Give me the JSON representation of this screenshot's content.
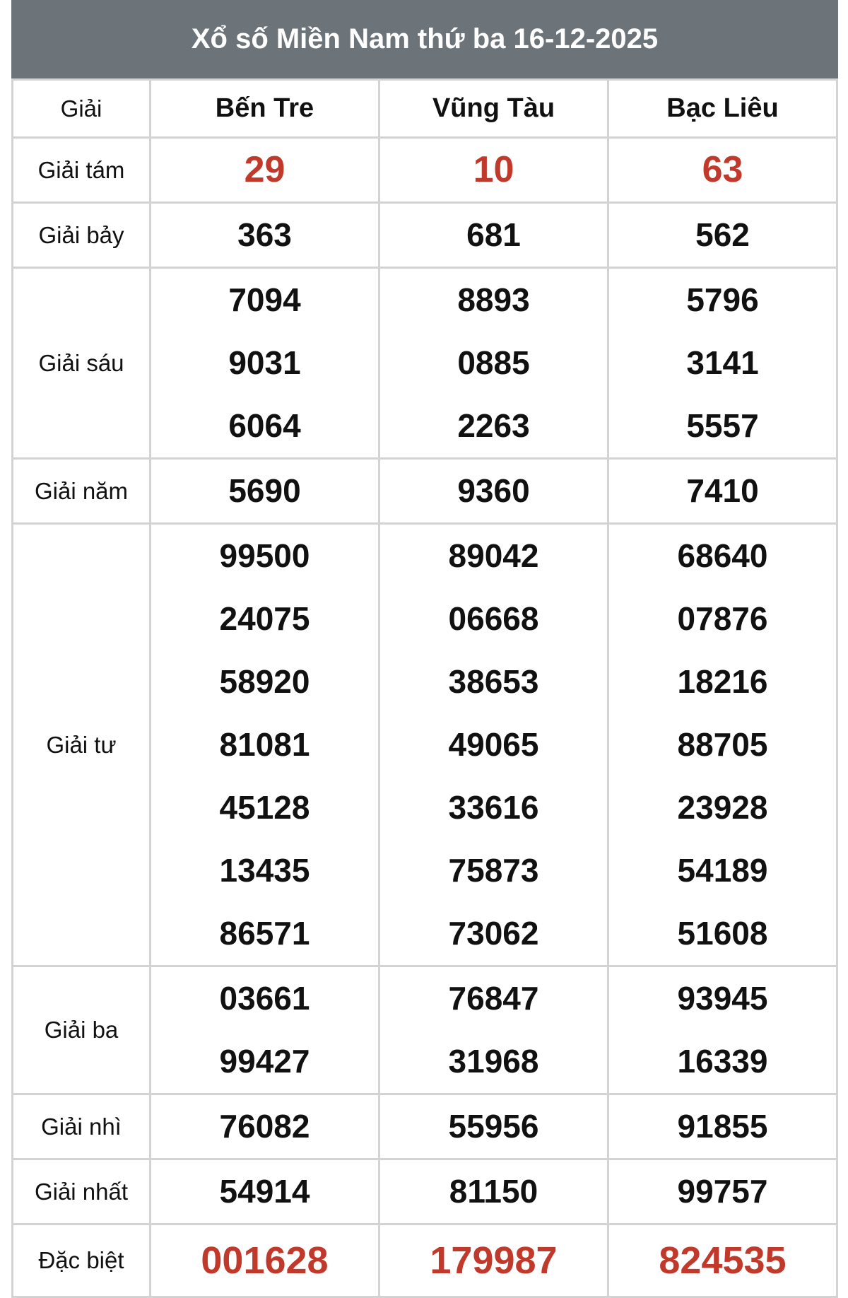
{
  "title": "Xổ số Miền Nam thứ ba 16-12-2025",
  "header": {
    "label": "Giải",
    "provinces": [
      "Bến Tre",
      "Vũng Tàu",
      "Bạc Liêu"
    ]
  },
  "colors": {
    "header_bg": "#6c7479",
    "highlight": "#c0392b",
    "border": "#d3d3d3"
  },
  "prizes": [
    {
      "label": "Giải tám",
      "highlight": true,
      "results": [
        [
          "29"
        ],
        [
          "10"
        ],
        [
          "63"
        ]
      ]
    },
    {
      "label": "Giải bảy",
      "results": [
        [
          "363"
        ],
        [
          "681"
        ],
        [
          "562"
        ]
      ]
    },
    {
      "label": "Giải sáu",
      "results": [
        [
          "7094",
          "9031",
          "6064"
        ],
        [
          "8893",
          "0885",
          "2263"
        ],
        [
          "5796",
          "3141",
          "5557"
        ]
      ]
    },
    {
      "label": "Giải năm",
      "results": [
        [
          "5690"
        ],
        [
          "9360"
        ],
        [
          "7410"
        ]
      ]
    },
    {
      "label": "Giải tư",
      "results": [
        [
          "99500",
          "24075",
          "58920",
          "81081",
          "45128",
          "13435",
          "86571"
        ],
        [
          "89042",
          "06668",
          "38653",
          "49065",
          "33616",
          "75873",
          "73062"
        ],
        [
          "68640",
          "07876",
          "18216",
          "88705",
          "23928",
          "54189",
          "51608"
        ]
      ]
    },
    {
      "label": "Giải ba",
      "results": [
        [
          "03661",
          "99427"
        ],
        [
          "76847",
          "31968"
        ],
        [
          "93945",
          "16339"
        ]
      ]
    },
    {
      "label": "Giải nhì",
      "results": [
        [
          "76082"
        ],
        [
          "55956"
        ],
        [
          "91855"
        ]
      ]
    },
    {
      "label": "Giải nhất",
      "results": [
        [
          "54914"
        ],
        [
          "81150"
        ],
        [
          "99757"
        ]
      ]
    },
    {
      "label": "Đặc biệt",
      "highlight": true,
      "big": true,
      "results": [
        [
          "001628"
        ],
        [
          "179987"
        ],
        [
          "824535"
        ]
      ]
    }
  ]
}
